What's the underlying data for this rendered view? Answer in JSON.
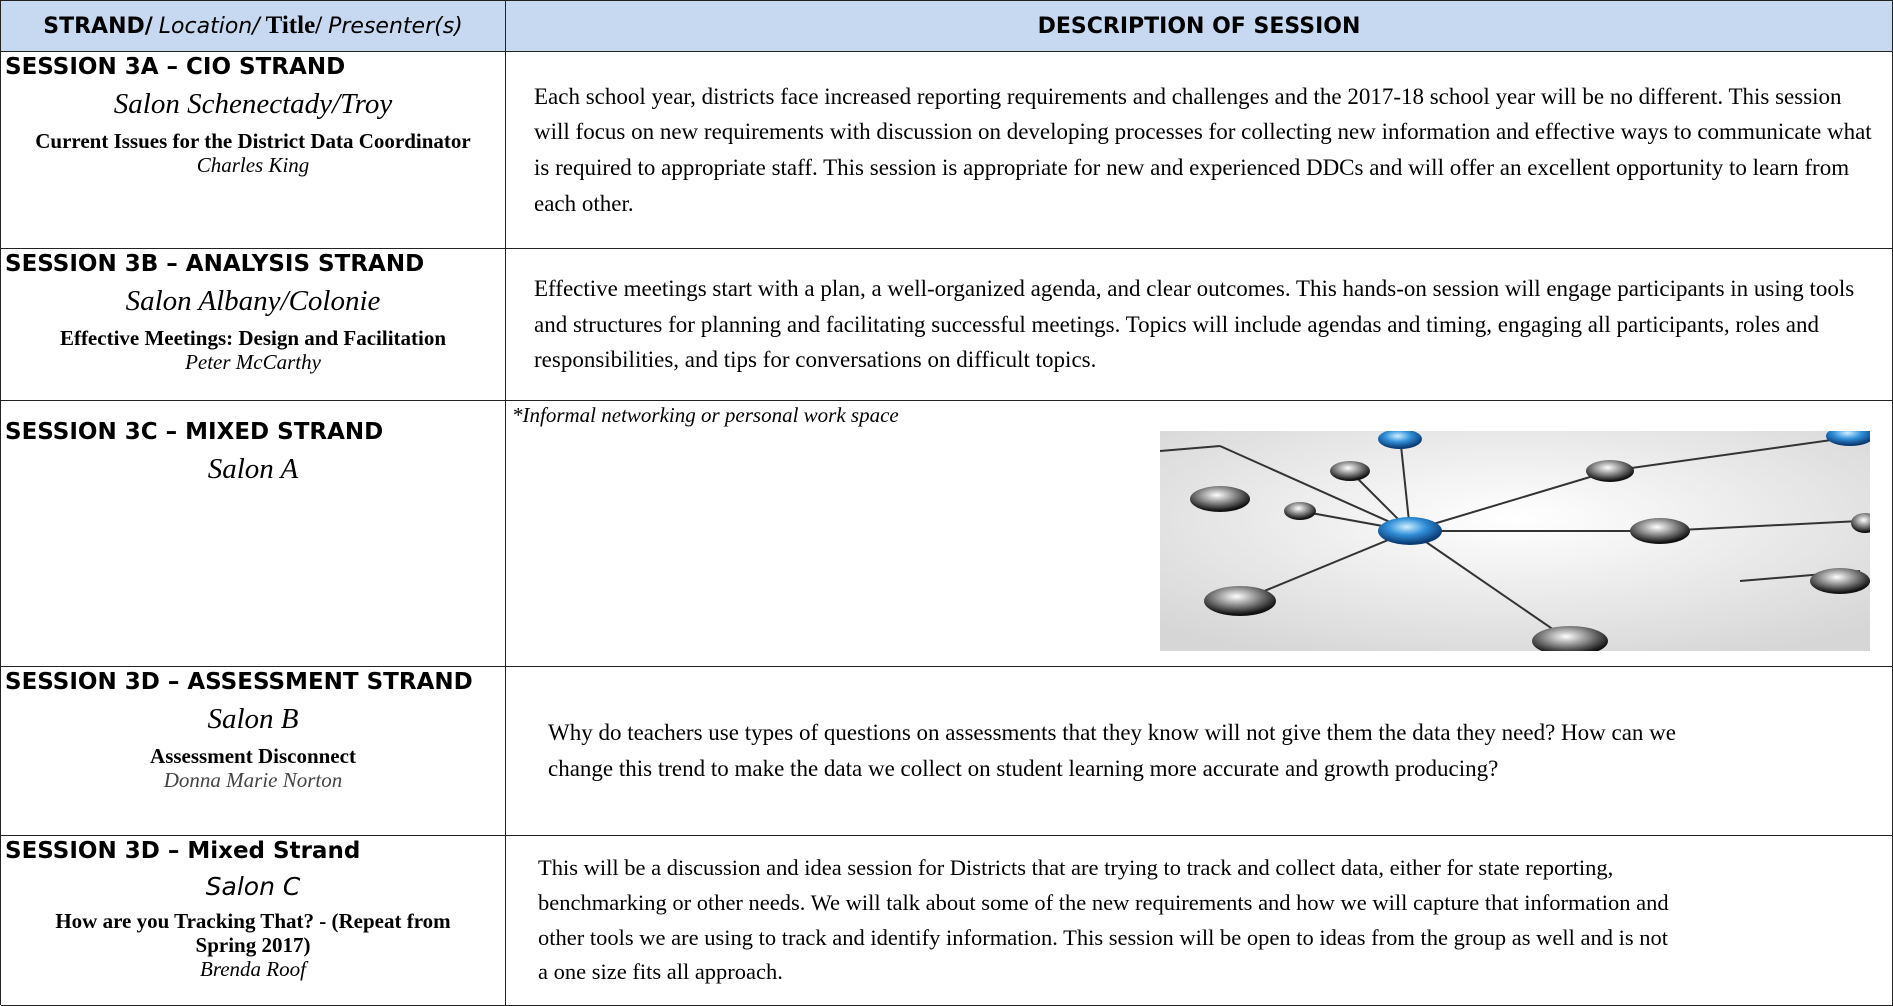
{
  "header": {
    "left_parts": [
      "STRAND/",
      "Location/",
      "Title/",
      "Presenter(s)"
    ],
    "right": "DESCRIPTION OF SESSION"
  },
  "rows": [
    {
      "session": "SESSION 3A – CIO STRAND",
      "location": "Salon Schenectady/Troy",
      "title": "Current Issues for the District Data Coordinator",
      "presenter": "Charles King",
      "description": "Each school year, districts face increased reporting requirements and challenges and the 2017-18 school year will be no different. This session will focus on new requirements with discussion on developing processes for collecting new information and effective ways to communicate what is required to appropriate staff. This session is appropriate for new and experienced DDCs and will offer an excellent opportunity to learn from each other."
    },
    {
      "session": "SESSION 3B – ANALYSIS STRAND",
      "location": "Salon Albany/Colonie",
      "title": "Effective Meetings: Design and Facilitation",
      "presenter": "Peter McCarthy",
      "description": "Effective meetings start with a plan, a well-organized agenda, and clear outcomes. This hands-on session will engage participants in using tools and structures for planning and facilitating successful meetings. Topics will include agendas and timing, engaging all participants, roles and responsibilities, and tips for conversations on difficult topics."
    },
    {
      "session": "SESSION 3C – MIXED STRAND",
      "location": "Salon A",
      "description": "*Informal networking or personal work space"
    },
    {
      "session": "SESSION 3D – ASSESSMENT STRAND",
      "location": "Salon B",
      "title": "Assessment Disconnect",
      "presenter": "Donna Marie Norton",
      "description": "Why do teachers use types of questions on assessments that they know will not give them the data they need? How can we change this trend to make the data we collect on student learning more accurate and growth producing?"
    },
    {
      "session": "SESSION 3D – Mixed Strand",
      "location": "Salon C",
      "title": "How are you Tracking That? - (Repeat from Spring 2017)",
      "presenter": "Brenda Roof",
      "description": "This will be a discussion and idea session for Districts that are trying to track and collect data, either for state reporting, benchmarking or other needs. We will talk about some of the new requirements and how we will capture that information and other tools we are using to track and identify information. This session will be open to ideas from the group as well and is not a one size fits all approach."
    }
  ]
}
